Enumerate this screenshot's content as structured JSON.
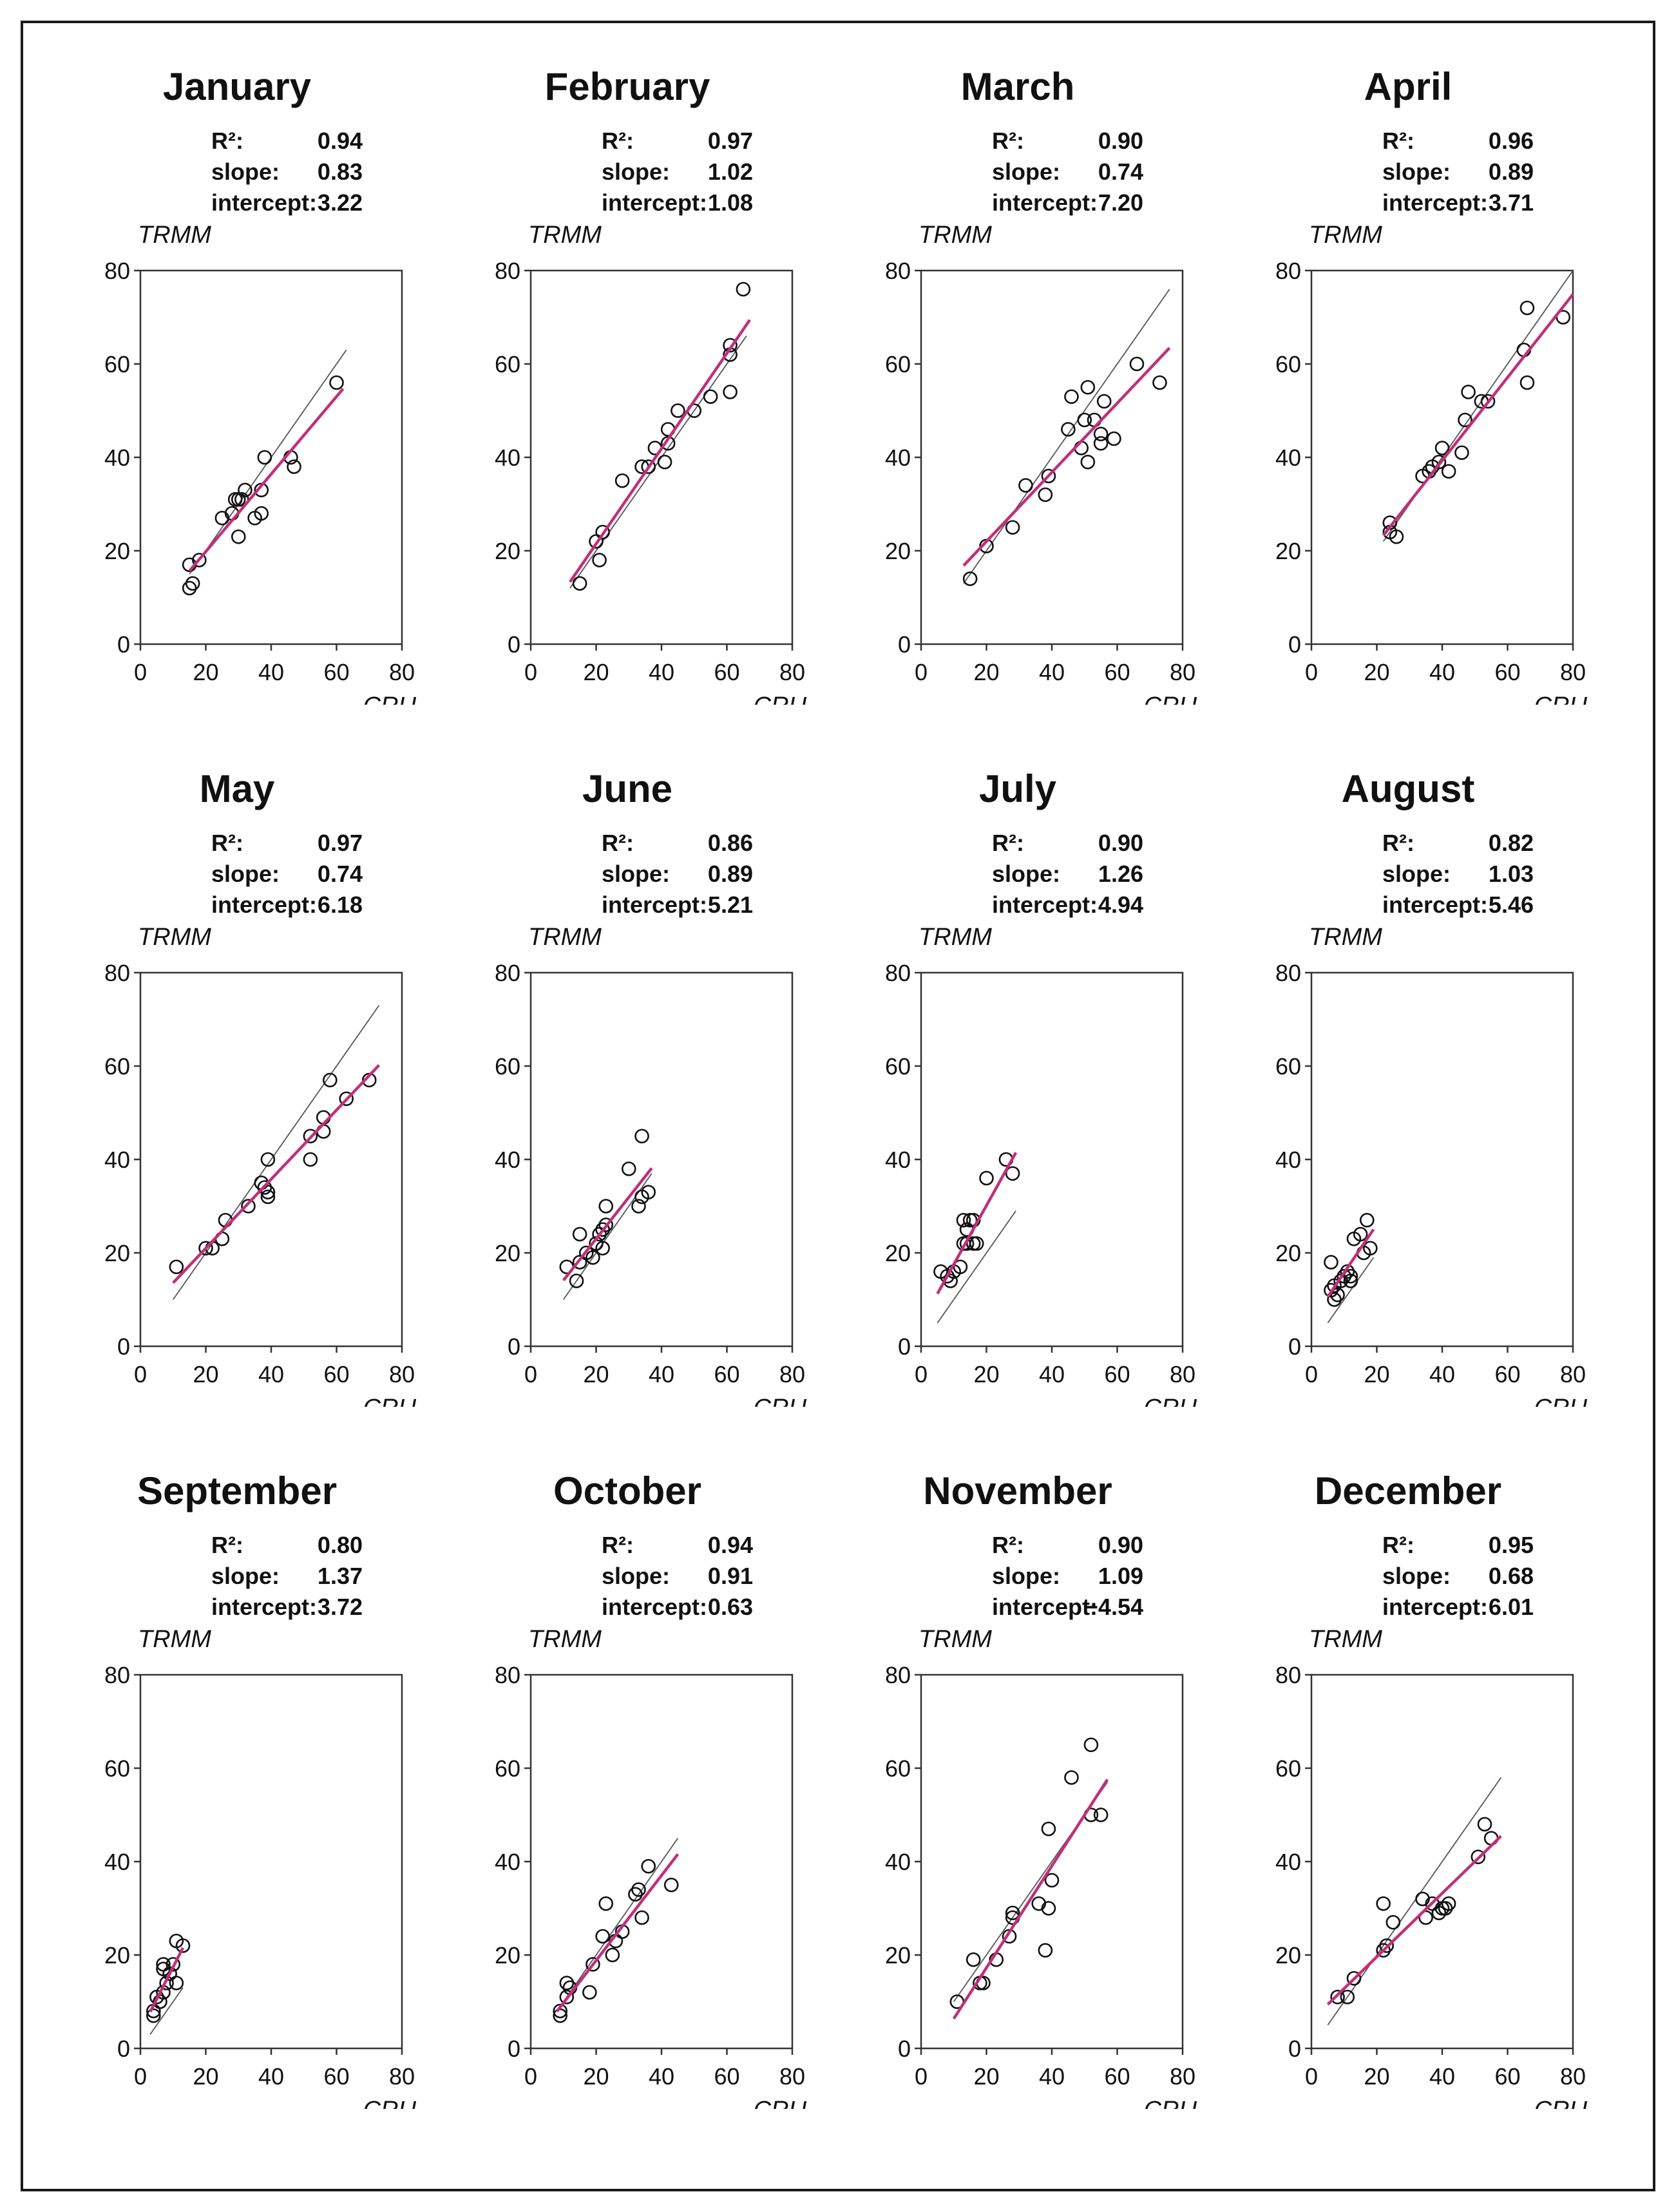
{
  "figure": {
    "y_axis_label": "TRMM",
    "x_axis_label": "CRU",
    "stat_labels": {
      "r2": "R²:",
      "slope": "slope:",
      "intercept": "intercept:"
    },
    "colors": {
      "fit_line": "#c0307a",
      "one_to_one_line": "#555555",
      "points": "#111111",
      "frame": "#1a1a1a"
    }
  },
  "panels": [
    {
      "title": "January",
      "r2": "0.94",
      "slope": "0.83",
      "intercept": "3.22"
    },
    {
      "title": "February",
      "r2": "0.97",
      "slope": "1.02",
      "intercept": "1.08"
    },
    {
      "title": "March",
      "r2": "0.90",
      "slope": "0.74",
      "intercept": "7.20"
    },
    {
      "title": "April",
      "r2": "0.96",
      "slope": "0.89",
      "intercept": "3.71"
    },
    {
      "title": "May",
      "r2": "0.97",
      "slope": "0.74",
      "intercept": "6.18"
    },
    {
      "title": "June",
      "r2": "0.86",
      "slope": "0.89",
      "intercept": "5.21"
    },
    {
      "title": "July",
      "r2": "0.90",
      "slope": "1.26",
      "intercept": "4.94"
    },
    {
      "title": "August",
      "r2": "0.82",
      "slope": "1.03",
      "intercept": "5.46"
    },
    {
      "title": "September",
      "r2": "0.80",
      "slope": "1.37",
      "intercept": "3.72"
    },
    {
      "title": "October",
      "r2": "0.94",
      "slope": "0.91",
      "intercept": "0.63"
    },
    {
      "title": "November",
      "r2": "0.90",
      "slope": "1.09",
      "intercept": "−4.54"
    },
    {
      "title": "December",
      "r2": "0.95",
      "slope": "0.68",
      "intercept": "6.01"
    }
  ],
  "chart_data": [
    {
      "type": "scatter",
      "title": "January",
      "xlabel": "CRU",
      "ylabel": "TRMM",
      "xlim": [
        0,
        80
      ],
      "ylim": [
        0,
        80
      ],
      "xticks": [
        0,
        20,
        40,
        60,
        80
      ],
      "yticks": [
        0,
        20,
        40,
        60,
        80
      ],
      "fit": {
        "slope": 0.83,
        "intercept": 3.22,
        "x_range": [
          15,
          62
        ]
      },
      "one_to_one": {
        "x_range": [
          15,
          63
        ]
      },
      "points": [
        [
          15,
          17
        ],
        [
          15,
          12
        ],
        [
          16,
          13
        ],
        [
          18,
          18
        ],
        [
          25,
          27
        ],
        [
          28,
          28
        ],
        [
          29,
          31
        ],
        [
          30,
          23
        ],
        [
          30,
          31
        ],
        [
          31,
          31
        ],
        [
          32,
          33
        ],
        [
          35,
          27
        ],
        [
          37,
          33
        ],
        [
          37,
          28
        ],
        [
          38,
          40
        ],
        [
          46,
          40
        ],
        [
          47,
          38
        ],
        [
          60,
          56
        ]
      ]
    },
    {
      "type": "scatter",
      "title": "February",
      "xlabel": "CRU",
      "ylabel": "TRMM",
      "xlim": [
        0,
        80
      ],
      "ylim": [
        0,
        80
      ],
      "xticks": [
        0,
        20,
        40,
        60,
        80
      ],
      "yticks": [
        0,
        20,
        40,
        60,
        80
      ],
      "fit": {
        "slope": 1.02,
        "intercept": 1.08,
        "x_range": [
          12,
          67
        ]
      },
      "one_to_one": {
        "x_range": [
          12,
          66
        ]
      },
      "points": [
        [
          15,
          13
        ],
        [
          20,
          22
        ],
        [
          21,
          18
        ],
        [
          22,
          24
        ],
        [
          28,
          35
        ],
        [
          34,
          38
        ],
        [
          36,
          38
        ],
        [
          38,
          42
        ],
        [
          41,
          39
        ],
        [
          42,
          43
        ],
        [
          42,
          46
        ],
        [
          45,
          50
        ],
        [
          50,
          50
        ],
        [
          55,
          53
        ],
        [
          61,
          54
        ],
        [
          61,
          62
        ],
        [
          61,
          64
        ],
        [
          65,
          76
        ]
      ]
    },
    {
      "type": "scatter",
      "title": "March",
      "xlabel": "CRU",
      "ylabel": "TRMM",
      "xlim": [
        0,
        80
      ],
      "ylim": [
        0,
        80
      ],
      "xticks": [
        0,
        20,
        40,
        60,
        80
      ],
      "yticks": [
        0,
        20,
        40,
        60,
        80
      ],
      "fit": {
        "slope": 0.74,
        "intercept": 7.2,
        "x_range": [
          13,
          76
        ]
      },
      "one_to_one": {
        "x_range": [
          13,
          76
        ]
      },
      "points": [
        [
          15,
          14
        ],
        [
          20,
          21
        ],
        [
          28,
          25
        ],
        [
          32,
          34
        ],
        [
          38,
          32
        ],
        [
          39,
          36
        ],
        [
          45,
          46
        ],
        [
          46,
          53
        ],
        [
          49,
          42
        ],
        [
          50,
          48
        ],
        [
          51,
          39
        ],
        [
          51,
          55
        ],
        [
          53,
          48
        ],
        [
          55,
          43
        ],
        [
          55,
          45
        ],
        [
          56,
          52
        ],
        [
          59,
          44
        ],
        [
          66,
          60
        ],
        [
          73,
          56
        ]
      ]
    },
    {
      "type": "scatter",
      "title": "April",
      "xlabel": "CRU",
      "ylabel": "TRMM",
      "xlim": [
        0,
        80
      ],
      "ylim": [
        0,
        80
      ],
      "xticks": [
        0,
        20,
        40,
        60,
        80
      ],
      "yticks": [
        0,
        20,
        40,
        60,
        80
      ],
      "fit": {
        "slope": 0.89,
        "intercept": 3.71,
        "x_range": [
          22,
          80
        ]
      },
      "one_to_one": {
        "x_range": [
          22,
          80
        ]
      },
      "points": [
        [
          24,
          26
        ],
        [
          24,
          24
        ],
        [
          26,
          23
        ],
        [
          34,
          36
        ],
        [
          36,
          37
        ],
        [
          37,
          38
        ],
        [
          39,
          39
        ],
        [
          40,
          42
        ],
        [
          42,
          37
        ],
        [
          46,
          41
        ],
        [
          47,
          48
        ],
        [
          48,
          54
        ],
        [
          52,
          52
        ],
        [
          54,
          52
        ],
        [
          65,
          63
        ],
        [
          66,
          72
        ],
        [
          66,
          56
        ],
        [
          77,
          70
        ]
      ]
    },
    {
      "type": "scatter",
      "title": "May",
      "xlabel": "CRU",
      "ylabel": "TRMM",
      "xlim": [
        0,
        80
      ],
      "ylim": [
        0,
        80
      ],
      "xticks": [
        0,
        20,
        40,
        60,
        80
      ],
      "yticks": [
        0,
        20,
        40,
        60,
        80
      ],
      "fit": {
        "slope": 0.74,
        "intercept": 6.18,
        "x_range": [
          10,
          73
        ]
      },
      "one_to_one": {
        "x_range": [
          10,
          73
        ]
      },
      "points": [
        [
          11,
          17
        ],
        [
          20,
          21
        ],
        [
          22,
          21
        ],
        [
          25,
          23
        ],
        [
          26,
          27
        ],
        [
          33,
          30
        ],
        [
          37,
          35
        ],
        [
          38,
          34
        ],
        [
          39,
          40
        ],
        [
          39,
          32
        ],
        [
          39,
          33
        ],
        [
          52,
          45
        ],
        [
          52,
          40
        ],
        [
          56,
          46
        ],
        [
          56,
          49
        ],
        [
          58,
          57
        ],
        [
          63,
          53
        ],
        [
          70,
          57
        ]
      ]
    },
    {
      "type": "scatter",
      "title": "June",
      "xlabel": "CRU",
      "ylabel": "TRMM",
      "xlim": [
        0,
        80
      ],
      "ylim": [
        0,
        80
      ],
      "xticks": [
        0,
        20,
        40,
        60,
        80
      ],
      "yticks": [
        0,
        20,
        40,
        60,
        80
      ],
      "fit": {
        "slope": 0.89,
        "intercept": 5.21,
        "x_range": [
          10,
          37
        ]
      },
      "one_to_one": {
        "x_range": [
          10,
          37
        ]
      },
      "points": [
        [
          11,
          17
        ],
        [
          14,
          14
        ],
        [
          15,
          24
        ],
        [
          15,
          18
        ],
        [
          17,
          20
        ],
        [
          19,
          19
        ],
        [
          20,
          22
        ],
        [
          21,
          24
        ],
        [
          22,
          21
        ],
        [
          22,
          25
        ],
        [
          23,
          30
        ],
        [
          23,
          26
        ],
        [
          30,
          38
        ],
        [
          33,
          30
        ],
        [
          34,
          45
        ],
        [
          34,
          32
        ],
        [
          36,
          33
        ]
      ]
    },
    {
      "type": "scatter",
      "title": "July",
      "xlabel": "CRU",
      "ylabel": "TRMM",
      "xlim": [
        0,
        80
      ],
      "ylim": [
        0,
        80
      ],
      "xticks": [
        0,
        20,
        40,
        60,
        80
      ],
      "yticks": [
        0,
        20,
        40,
        60,
        80
      ],
      "fit": {
        "slope": 1.26,
        "intercept": 4.94,
        "x_range": [
          5,
          29
        ]
      },
      "one_to_one": {
        "x_range": [
          5,
          29
        ]
      },
      "points": [
        [
          6,
          16
        ],
        [
          8,
          15
        ],
        [
          9,
          14
        ],
        [
          10,
          16
        ],
        [
          12,
          17
        ],
        [
          13,
          22
        ],
        [
          13,
          27
        ],
        [
          14,
          22
        ],
        [
          14,
          25
        ],
        [
          15,
          27
        ],
        [
          16,
          27
        ],
        [
          16,
          22
        ],
        [
          17,
          22
        ],
        [
          20,
          36
        ],
        [
          26,
          40
        ],
        [
          28,
          37
        ]
      ]
    },
    {
      "type": "scatter",
      "title": "August",
      "xlabel": "CRU",
      "ylabel": "TRMM",
      "xlim": [
        0,
        80
      ],
      "ylim": [
        0,
        80
      ],
      "xticks": [
        0,
        20,
        40,
        60,
        80
      ],
      "yticks": [
        0,
        20,
        40,
        60,
        80
      ],
      "fit": {
        "slope": 1.03,
        "intercept": 5.46,
        "x_range": [
          5,
          19
        ]
      },
      "one_to_one": {
        "x_range": [
          5,
          19
        ]
      },
      "points": [
        [
          6,
          18
        ],
        [
          6,
          12
        ],
        [
          7,
          10
        ],
        [
          7,
          13
        ],
        [
          8,
          11
        ],
        [
          9,
          14
        ],
        [
          10,
          15
        ],
        [
          11,
          16
        ],
        [
          12,
          14
        ],
        [
          12,
          15
        ],
        [
          13,
          23
        ],
        [
          15,
          24
        ],
        [
          16,
          20
        ],
        [
          17,
          27
        ],
        [
          18,
          21
        ]
      ]
    },
    {
      "type": "scatter",
      "title": "September",
      "xlabel": "CRU",
      "ylabel": "TRMM",
      "xlim": [
        0,
        80
      ],
      "ylim": [
        0,
        80
      ],
      "xticks": [
        0,
        20,
        40,
        60,
        80
      ],
      "yticks": [
        0,
        20,
        40,
        60,
        80
      ],
      "fit": {
        "slope": 1.37,
        "intercept": 3.72,
        "x_range": [
          3,
          13
        ]
      },
      "one_to_one": {
        "x_range": [
          3,
          13
        ]
      },
      "points": [
        [
          4,
          8
        ],
        [
          4,
          7
        ],
        [
          5,
          11
        ],
        [
          6,
          10
        ],
        [
          7,
          17
        ],
        [
          7,
          18
        ],
        [
          7,
          12
        ],
        [
          8,
          14
        ],
        [
          9,
          16
        ],
        [
          10,
          18
        ],
        [
          11,
          23
        ],
        [
          11,
          14
        ],
        [
          13,
          22
        ]
      ]
    },
    {
      "type": "scatter",
      "title": "October",
      "xlabel": "CRU",
      "ylabel": "TRMM",
      "xlim": [
        0,
        80
      ],
      "ylim": [
        0,
        80
      ],
      "xticks": [
        0,
        20,
        40,
        60,
        80
      ],
      "yticks": [
        0,
        20,
        40,
        60,
        80
      ],
      "fit": {
        "slope": 0.91,
        "intercept": 0.63,
        "x_range": [
          8,
          45
        ]
      },
      "one_to_one": {
        "x_range": [
          8,
          45
        ]
      },
      "points": [
        [
          9,
          8
        ],
        [
          9,
          7
        ],
        [
          11,
          11
        ],
        [
          11,
          14
        ],
        [
          12,
          13
        ],
        [
          18,
          12
        ],
        [
          19,
          18
        ],
        [
          22,
          24
        ],
        [
          23,
          31
        ],
        [
          25,
          20
        ],
        [
          26,
          23
        ],
        [
          28,
          25
        ],
        [
          32,
          33
        ],
        [
          33,
          34
        ],
        [
          34,
          28
        ],
        [
          36,
          39
        ],
        [
          43,
          35
        ]
      ]
    },
    {
      "type": "scatter",
      "title": "November",
      "xlabel": "CRU",
      "ylabel": "TRMM",
      "xlim": [
        0,
        80
      ],
      "ylim": [
        0,
        80
      ],
      "xticks": [
        0,
        20,
        40,
        60,
        80
      ],
      "yticks": [
        0,
        20,
        40,
        60,
        80
      ],
      "fit": {
        "slope": 1.09,
        "intercept": -4.54,
        "x_range": [
          10,
          57
        ]
      },
      "one_to_one": {
        "x_range": [
          10,
          57
        ]
      },
      "points": [
        [
          11,
          10
        ],
        [
          16,
          19
        ],
        [
          18,
          14
        ],
        [
          19,
          14
        ],
        [
          23,
          19
        ],
        [
          27,
          24
        ],
        [
          28,
          28
        ],
        [
          28,
          29
        ],
        [
          36,
          31
        ],
        [
          38,
          21
        ],
        [
          39,
          47
        ],
        [
          39,
          30
        ],
        [
          40,
          36
        ],
        [
          46,
          58
        ],
        [
          52,
          65
        ],
        [
          52,
          50
        ],
        [
          55,
          50
        ]
      ]
    },
    {
      "type": "scatter",
      "title": "December",
      "xlabel": "CRU",
      "ylabel": "TRMM",
      "xlim": [
        0,
        80
      ],
      "ylim": [
        0,
        80
      ],
      "xticks": [
        0,
        20,
        40,
        60,
        80
      ],
      "yticks": [
        0,
        20,
        40,
        60,
        80
      ],
      "fit": {
        "slope": 0.68,
        "intercept": 6.01,
        "x_range": [
          5,
          58
        ]
      },
      "one_to_one": {
        "x_range": [
          5,
          58
        ]
      },
      "points": [
        [
          8,
          11
        ],
        [
          11,
          11
        ],
        [
          13,
          15
        ],
        [
          22,
          21
        ],
        [
          22,
          31
        ],
        [
          23,
          22
        ],
        [
          25,
          27
        ],
        [
          34,
          32
        ],
        [
          35,
          28
        ],
        [
          37,
          31
        ],
        [
          39,
          29
        ],
        [
          40,
          30
        ],
        [
          41,
          30
        ],
        [
          42,
          31
        ],
        [
          51,
          41
        ],
        [
          53,
          48
        ],
        [
          55,
          45
        ]
      ]
    }
  ]
}
